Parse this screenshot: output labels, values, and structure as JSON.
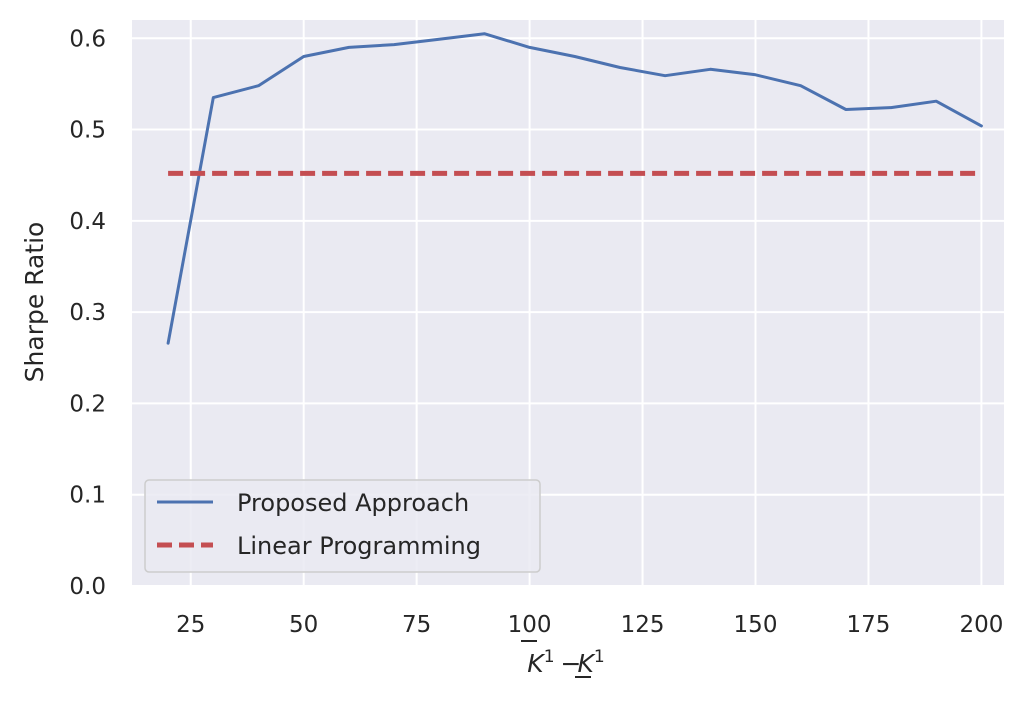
{
  "chart_data": {
    "type": "line",
    "title": "",
    "xlabel_parts": {
      "base_a": "K",
      "sup_a": "1",
      "operator": "−",
      "base_b": "K",
      "sup_b": "1"
    },
    "ylabel": "Sharpe Ratio",
    "xlim": [
      12,
      205
    ],
    "ylim": [
      0.0,
      0.62
    ],
    "xticks": [
      25,
      50,
      75,
      100,
      125,
      150,
      175,
      200
    ],
    "yticks": [
      0.0,
      0.1,
      0.2,
      0.3,
      0.4,
      0.5,
      0.6
    ],
    "grid": true,
    "legend_position": "lower-left",
    "series": [
      {
        "name": "Proposed Approach",
        "style": "solid",
        "color": "#4c72b0",
        "x": [
          20,
          30,
          40,
          50,
          60,
          70,
          80,
          90,
          100,
          110,
          120,
          130,
          140,
          150,
          160,
          170,
          180,
          190,
          200
        ],
        "y": [
          0.266,
          0.535,
          0.548,
          0.58,
          0.59,
          0.593,
          0.599,
          0.605,
          0.59,
          0.58,
          0.568,
          0.559,
          0.566,
          0.56,
          0.548,
          0.522,
          0.524,
          0.531,
          0.504
        ]
      },
      {
        "name": "Linear Programming",
        "style": "dashed",
        "color": "#c44e52",
        "x": [
          20,
          200
        ],
        "y": [
          0.452,
          0.452
        ]
      }
    ]
  }
}
